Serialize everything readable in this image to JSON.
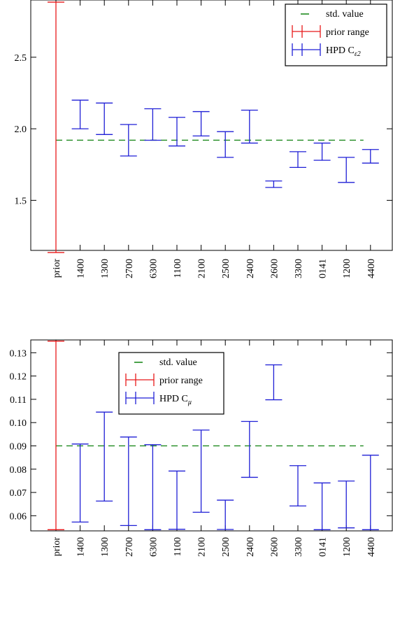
{
  "chart_data": [
    {
      "type": "errorbar",
      "categories": [
        "prior",
        "1400",
        "1300",
        "2700",
        "6300",
        "1100",
        "2100",
        "2500",
        "2400",
        "2600",
        "3300",
        "0141",
        "1200",
        "4400"
      ],
      "reference_value": 1.92,
      "ylim": [
        1.15,
        2.9
      ],
      "yticks": [
        "1.5",
        "2.0",
        "2.5"
      ],
      "ytick_values": [
        1.5,
        2.0,
        2.5
      ],
      "legend": {
        "position": "top-right",
        "std_label": "std. value",
        "prior_label": "prior range",
        "hpd_label": "HPD C",
        "hpd_subscript": "ε2"
      },
      "series": [
        {
          "name": "prior range",
          "color": "#e8191a",
          "intervals": [
            [
              1.135,
              2.885
            ],
            null,
            null,
            null,
            null,
            null,
            null,
            null,
            null,
            null,
            null,
            null,
            null,
            null
          ]
        },
        {
          "name": "HPD",
          "color": "#1f1fd6",
          "intervals": [
            null,
            [
              2.0,
              2.2
            ],
            [
              1.96,
              2.18
            ],
            [
              1.81,
              2.03
            ],
            [
              1.92,
              2.14
            ],
            [
              1.88,
              2.08
            ],
            [
              1.95,
              2.12
            ],
            [
              1.8,
              1.98
            ],
            [
              1.9,
              2.13
            ],
            [
              1.59,
              1.635
            ],
            [
              1.73,
              1.84
            ],
            [
              1.78,
              1.9
            ],
            [
              1.625,
              1.8
            ],
            [
              1.76,
              1.855
            ]
          ]
        }
      ],
      "reference_color": "#1f8a1f"
    },
    {
      "type": "errorbar",
      "categories": [
        "prior",
        "1400",
        "1300",
        "2700",
        "6300",
        "1100",
        "2100",
        "2500",
        "2400",
        "2600",
        "3300",
        "0141",
        "1200",
        "4400"
      ],
      "reference_value": 0.09,
      "ylim": [
        0.0535,
        0.1355
      ],
      "yticks": [
        "0.06",
        "0.07",
        "0.08",
        "0.09",
        "0.10",
        "0.11",
        "0.12",
        "0.13"
      ],
      "ytick_values": [
        0.06,
        0.07,
        0.08,
        0.09,
        0.1,
        0.11,
        0.12,
        0.13
      ],
      "legend": {
        "position": "top-center",
        "std_label": "std. value",
        "prior_label": "prior range",
        "hpd_label": "HPD C",
        "hpd_subscript": "μ"
      },
      "series": [
        {
          "name": "prior range",
          "color": "#e8191a",
          "intervals": [
            [
              0.054,
              0.135
            ],
            null,
            null,
            null,
            null,
            null,
            null,
            null,
            null,
            null,
            null,
            null,
            null,
            null
          ]
        },
        {
          "name": "HPD",
          "color": "#1f1fd6",
          "intervals": [
            null,
            [
              0.0573,
              0.0908
            ],
            [
              0.0663,
              0.1045
            ],
            [
              0.0558,
              0.0938
            ],
            [
              0.054,
              0.0905
            ],
            [
              0.0542,
              0.0792
            ],
            [
              0.0615,
              0.0968
            ],
            [
              0.0541,
              0.0667
            ],
            [
              0.0765,
              0.1005
            ],
            [
              0.1098,
              0.1248
            ],
            [
              0.0642,
              0.0815
            ],
            [
              0.054,
              0.0741
            ],
            [
              0.0548,
              0.0749
            ],
            [
              0.054,
              0.086
            ]
          ]
        }
      ],
      "reference_color": "#1f8a1f"
    }
  ]
}
